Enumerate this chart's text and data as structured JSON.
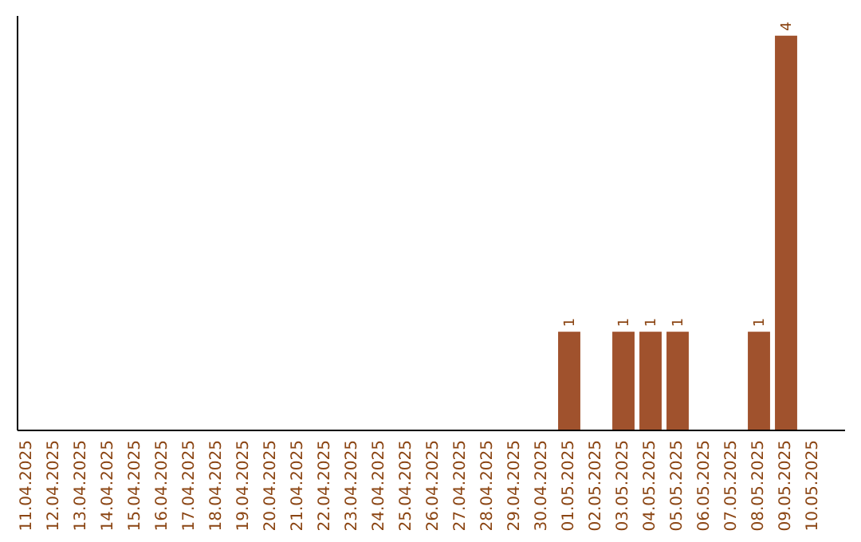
{
  "chart_data": {
    "type": "bar",
    "categories": [
      "11.04.2025",
      "12.04.2025",
      "13.04.2025",
      "14.04.2025",
      "15.04.2025",
      "16.04.2025",
      "17.04.2025",
      "18.04.2025",
      "19.04.2025",
      "20.04.2025",
      "21.04.2025",
      "22.04.2025",
      "23.04.2025",
      "24.04.2025",
      "25.04.2025",
      "26.04.2025",
      "27.04.2025",
      "28.04.2025",
      "29.04.2025",
      "30.04.2025",
      "01.05.2025",
      "02.05.2025",
      "03.05.2025",
      "04.05.2025",
      "05.05.2025",
      "06.05.2025",
      "07.05.2025",
      "08.05.2025",
      "09.05.2025",
      "10.05.2025"
    ],
    "values": [
      null,
      null,
      null,
      null,
      null,
      null,
      null,
      null,
      null,
      null,
      null,
      null,
      null,
      null,
      null,
      null,
      null,
      null,
      null,
      null,
      1,
      null,
      1,
      1,
      1,
      null,
      null,
      1,
      4,
      null
    ],
    "data_labels": true,
    "color": "#a0522d",
    "ylim": [
      0,
      4.2
    ],
    "tick_labels": "x"
  }
}
